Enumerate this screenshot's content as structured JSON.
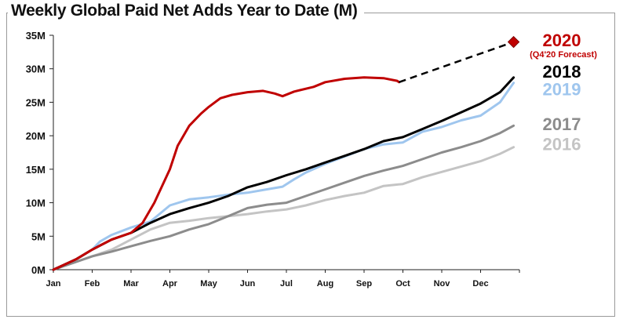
{
  "title": "Weekly Global Paid Net Adds Year to Date (M)",
  "chart_data": {
    "type": "line",
    "title": "Weekly Global Paid Net Adds Year to Date (M)",
    "xlabel": "",
    "ylabel": "",
    "x_ticks": [
      "Jan",
      "Feb",
      "Mar",
      "Apr",
      "May",
      "Jun",
      "Jul",
      "Aug",
      "Sep",
      "Oct",
      "Nov",
      "Dec"
    ],
    "y_ticks": [
      "0M",
      "5M",
      "10M",
      "15M",
      "20M",
      "25M",
      "30M",
      "35M"
    ],
    "ylim": [
      0,
      35
    ],
    "xlim": [
      0,
      12
    ],
    "grid": false,
    "series": [
      {
        "name": "2016",
        "color": "#c4c4c4",
        "points": [
          [
            0,
            0
          ],
          [
            0.5,
            1.0
          ],
          [
            1.0,
            2.0
          ],
          [
            1.5,
            3.0
          ],
          [
            2.0,
            4.5
          ],
          [
            2.5,
            6.0
          ],
          [
            3.0,
            7.0
          ],
          [
            3.5,
            7.3
          ],
          [
            4.0,
            7.7
          ],
          [
            4.5,
            8.0
          ],
          [
            5.0,
            8.3
          ],
          [
            5.5,
            8.7
          ],
          [
            6.0,
            9.0
          ],
          [
            6.5,
            9.6
          ],
          [
            7.0,
            10.4
          ],
          [
            7.5,
            11.0
          ],
          [
            8.0,
            11.5
          ],
          [
            8.5,
            12.5
          ],
          [
            9.0,
            12.8
          ],
          [
            9.5,
            13.8
          ],
          [
            10.0,
            14.6
          ],
          [
            10.5,
            15.4
          ],
          [
            11.0,
            16.2
          ],
          [
            11.5,
            17.3
          ],
          [
            11.85,
            18.3
          ]
        ]
      },
      {
        "name": "2017",
        "color": "#8c8c8c",
        "points": [
          [
            0,
            0
          ],
          [
            0.5,
            1.0
          ],
          [
            1.0,
            2.0
          ],
          [
            1.5,
            2.7
          ],
          [
            2.0,
            3.5
          ],
          [
            2.5,
            4.3
          ],
          [
            3.0,
            5.0
          ],
          [
            3.5,
            6.0
          ],
          [
            4.0,
            6.8
          ],
          [
            4.5,
            8.0
          ],
          [
            5.0,
            9.2
          ],
          [
            5.5,
            9.7
          ],
          [
            6.0,
            10.0
          ],
          [
            6.5,
            11.0
          ],
          [
            7.0,
            12.0
          ],
          [
            7.5,
            13.0
          ],
          [
            8.0,
            14.0
          ],
          [
            8.5,
            14.8
          ],
          [
            9.0,
            15.5
          ],
          [
            9.5,
            16.5
          ],
          [
            10.0,
            17.5
          ],
          [
            10.5,
            18.3
          ],
          [
            11.0,
            19.2
          ],
          [
            11.5,
            20.4
          ],
          [
            11.85,
            21.5
          ]
        ]
      },
      {
        "name": "2019",
        "color": "#9fc6ee",
        "points": [
          [
            0,
            0
          ],
          [
            0.3,
            0.8
          ],
          [
            0.6,
            1.6
          ],
          [
            1.0,
            3.0
          ],
          [
            1.2,
            4.2
          ],
          [
            1.5,
            5.2
          ],
          [
            2.0,
            6.3
          ],
          [
            2.5,
            7.2
          ],
          [
            3.0,
            9.6
          ],
          [
            3.5,
            10.5
          ],
          [
            4.0,
            10.8
          ],
          [
            4.5,
            11.2
          ],
          [
            5.0,
            11.5
          ],
          [
            5.5,
            12.0
          ],
          [
            5.9,
            12.4
          ],
          [
            6.2,
            13.5
          ],
          [
            6.5,
            14.5
          ],
          [
            7.0,
            15.8
          ],
          [
            7.5,
            16.9
          ],
          [
            8.0,
            18.0
          ],
          [
            8.5,
            18.7
          ],
          [
            9.0,
            19.0
          ],
          [
            9.5,
            20.6
          ],
          [
            10.0,
            21.3
          ],
          [
            10.5,
            22.3
          ],
          [
            11.0,
            23.0
          ],
          [
            11.5,
            25.0
          ],
          [
            11.85,
            27.9
          ]
        ]
      },
      {
        "name": "2018",
        "color": "#000000",
        "points": [
          [
            0,
            0
          ],
          [
            0.3,
            0.8
          ],
          [
            0.6,
            1.6
          ],
          [
            1.0,
            3.0
          ],
          [
            1.5,
            4.5
          ],
          [
            2.0,
            5.5
          ],
          [
            2.5,
            7.0
          ],
          [
            3.0,
            8.3
          ],
          [
            3.5,
            9.2
          ],
          [
            4.0,
            10.0
          ],
          [
            4.5,
            11.0
          ],
          [
            5.0,
            12.3
          ],
          [
            5.5,
            13.1
          ],
          [
            6.0,
            14.1
          ],
          [
            6.5,
            15.0
          ],
          [
            7.0,
            16.0
          ],
          [
            7.5,
            17.0
          ],
          [
            8.0,
            18.0
          ],
          [
            8.5,
            19.2
          ],
          [
            9.0,
            19.8
          ],
          [
            9.5,
            21.0
          ],
          [
            10.0,
            22.2
          ],
          [
            10.5,
            23.5
          ],
          [
            11.0,
            24.8
          ],
          [
            11.5,
            26.5
          ],
          [
            11.85,
            28.7
          ]
        ]
      },
      {
        "name": "2020",
        "color": "#c00000",
        "points": [
          [
            0,
            0
          ],
          [
            0.3,
            0.8
          ],
          [
            0.6,
            1.6
          ],
          [
            1.0,
            3.0
          ],
          [
            1.5,
            4.5
          ],
          [
            2.0,
            5.5
          ],
          [
            2.3,
            7.0
          ],
          [
            2.6,
            10.0
          ],
          [
            3.0,
            15.0
          ],
          [
            3.2,
            18.5
          ],
          [
            3.5,
            21.5
          ],
          [
            3.8,
            23.3
          ],
          [
            4.0,
            24.3
          ],
          [
            4.3,
            25.6
          ],
          [
            4.6,
            26.1
          ],
          [
            5.0,
            26.5
          ],
          [
            5.4,
            26.7
          ],
          [
            5.7,
            26.3
          ],
          [
            5.9,
            25.9
          ],
          [
            6.2,
            26.6
          ],
          [
            6.7,
            27.3
          ],
          [
            7.0,
            28.0
          ],
          [
            7.5,
            28.5
          ],
          [
            8.0,
            28.7
          ],
          [
            8.5,
            28.6
          ],
          [
            8.85,
            28.2
          ],
          [
            8.9,
            28.0
          ]
        ]
      },
      {
        "name": "Q4'20 Forecast",
        "color": "#000000",
        "dashed": true,
        "points": [
          [
            8.9,
            28.0
          ],
          [
            11.85,
            34.0
          ]
        ]
      }
    ],
    "marker": {
      "x": 11.85,
      "y": 34.0,
      "color": "#c00000",
      "shape": "diamond"
    },
    "labels": [
      {
        "text": "2020",
        "color": "#c00000",
        "y": 34.3
      },
      {
        "text": "(Q4'20 Forecast)",
        "color": "#c00000",
        "y": 32.2,
        "small": true
      },
      {
        "text": "2018",
        "color": "#000000",
        "y": 29.6
      },
      {
        "text": "2019",
        "color": "#9fc6ee",
        "y": 27.0
      },
      {
        "text": "2017",
        "color": "#8c8c8c",
        "y": 21.8
      },
      {
        "text": "2016",
        "color": "#c4c4c4",
        "y": 18.8
      }
    ]
  }
}
